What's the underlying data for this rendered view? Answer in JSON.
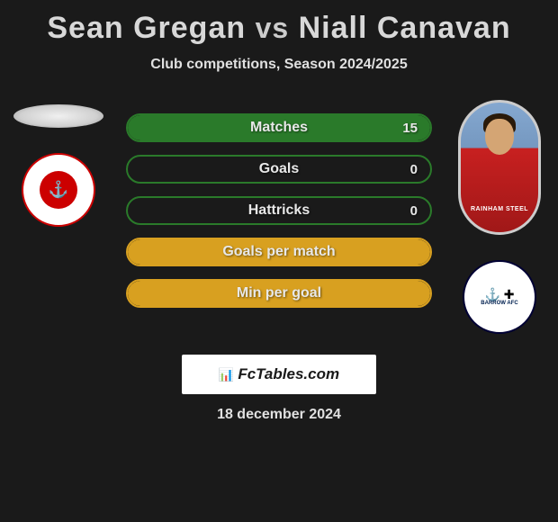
{
  "title": {
    "player1": "Sean Gregan",
    "vs": "vs",
    "player2": "Niall Canavan"
  },
  "subtitle": "Club competitions, Season 2024/2025",
  "stats": [
    {
      "label": "Matches",
      "value": "15",
      "border_color": "#2a7a2a",
      "fill_color": "#2a7a2a",
      "fill_width": 100
    },
    {
      "label": "Goals",
      "value": "0",
      "border_color": "#2a7a2a",
      "fill_color": "#2a7a2a",
      "fill_width": 0
    },
    {
      "label": "Hattricks",
      "value": "0",
      "border_color": "#2a7a2a",
      "fill_color": "#2a7a2a",
      "fill_width": 0
    },
    {
      "label": "Goals per match",
      "value": "",
      "border_color": "#d8a020",
      "fill_color": "#d8a020",
      "fill_width": 100
    },
    {
      "label": "Min per goal",
      "value": "",
      "border_color": "#d8a020",
      "fill_color": "#d8a020",
      "fill_width": 100
    }
  ],
  "player_photo": {
    "shirt_sponsor": "RAINHAM STEEL"
  },
  "club_badge_2": {
    "text_label": "BARROW AFC"
  },
  "footer": {
    "logo_text": "FcTables.com",
    "date": "18 december 2024"
  },
  "colors": {
    "background": "#1a1a1a",
    "title_text": "#d8d8d8",
    "body_text": "#e0e0e0"
  }
}
